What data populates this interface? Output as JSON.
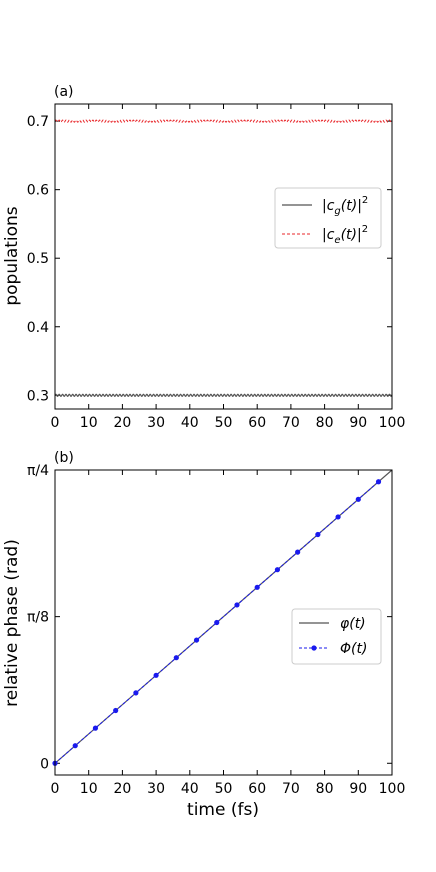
{
  "chart_data": [
    {
      "panel_label": "(a)",
      "type": "line",
      "ylabel": "populations",
      "xlim": [
        0,
        100
      ],
      "ylim": [
        0.28,
        0.725
      ],
      "xticks": [
        "0",
        "10",
        "20",
        "30",
        "40",
        "50",
        "60",
        "70",
        "80",
        "90",
        "100"
      ],
      "yticks": [
        "0.3",
        "0.4",
        "0.5",
        "0.6",
        "0.7"
      ],
      "ytick_values": [
        0.3,
        0.4,
        0.5,
        0.6,
        0.7
      ],
      "legend_position": "center-right",
      "series": [
        {
          "name": "|c_g(t)|²",
          "legend_main": "|c",
          "legend_sub": "g",
          "legend_rest": "(t)|",
          "legend_sup": "2",
          "color": "#555555",
          "style": "solid",
          "mean": 0.3,
          "oscillation_amplitude": 0.0015,
          "oscillation_period_fs": 1.0
        },
        {
          "name": "|c_e(t)|²",
          "legend_main": "|c",
          "legend_sub": "e",
          "legend_rest": "(t)|",
          "legend_sup": "2",
          "color": "#e8262a",
          "style": "dashed",
          "mean": 0.7,
          "oscillation_amplitude": 0.0015,
          "oscillation_period_fs": 1.0
        }
      ]
    },
    {
      "panel_label": "(b)",
      "type": "line",
      "xlabel": "time (fs)",
      "ylabel": "relative phase (rad)",
      "xlim": [
        0,
        100
      ],
      "ylim": [
        -0.0314,
        0.7854
      ],
      "xticks": [
        "0",
        "10",
        "20",
        "30",
        "40",
        "50",
        "60",
        "70",
        "80",
        "90",
        "100"
      ],
      "yticks": [
        "0",
        "π/8",
        "π/4"
      ],
      "ytick_values": [
        0,
        0.3927,
        0.7854
      ],
      "legend_position": "center-right",
      "series": [
        {
          "name": "φ(t)",
          "color": "#555555",
          "style": "solid",
          "x": [
            0,
            100
          ],
          "y": [
            0,
            0.7854
          ]
        },
        {
          "name": "Φ(t)",
          "color": "#1a1aee",
          "style": "dashed-markers",
          "x": [
            0,
            6,
            12,
            18,
            24,
            30,
            36,
            42,
            48,
            54,
            60,
            66,
            72,
            78,
            84,
            90,
            96
          ],
          "y": [
            0,
            0.0471,
            0.0942,
            0.1414,
            0.1885,
            0.2356,
            0.2827,
            0.3299,
            0.377,
            0.4241,
            0.4712,
            0.5184,
            0.5655,
            0.6126,
            0.6597,
            0.7069,
            0.754
          ]
        }
      ]
    }
  ]
}
